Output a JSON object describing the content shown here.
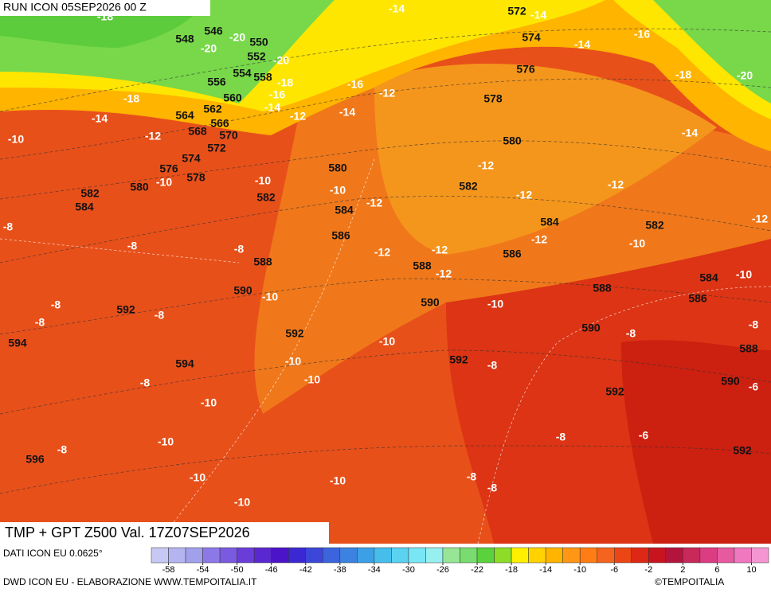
{
  "header": {
    "run": "RUN ICON 05SEP2026 00 Z"
  },
  "map": {
    "height_labels": [
      548,
      546,
      550,
      552,
      554,
      558,
      556,
      560,
      562,
      564,
      566,
      568,
      570,
      572,
      574,
      576,
      578,
      580,
      582,
      584,
      580,
      582,
      584,
      586,
      588,
      590,
      592,
      594,
      592,
      594,
      596,
      572,
      574,
      576,
      578,
      580,
      582,
      584,
      586,
      588,
      590,
      588,
      590,
      592,
      592,
      582,
      584,
      586,
      588,
      590,
      592
    ],
    "temp_labels": [
      -18,
      -20,
      -20,
      -20,
      -18,
      -16,
      -14,
      -18,
      -14,
      -12,
      -10,
      -12,
      -16,
      -12,
      -14,
      -14,
      -14,
      -14,
      -16,
      -18,
      -20,
      -14,
      -10,
      -10,
      -10,
      -12,
      -12,
      -12,
      -12,
      -12,
      -8,
      -8,
      -8,
      -10,
      -12,
      -12,
      -12,
      -12,
      -10,
      -10,
      -10,
      -8,
      -8,
      -8,
      -8,
      -8,
      -10,
      -10,
      -8,
      -10,
      -8,
      -10,
      -6,
      -10,
      -8,
      -8,
      -6,
      -10,
      -10,
      -8,
      -8,
      -10
    ]
  },
  "footer": {
    "title": "TMP + GPT Z500 Val. 17Z07SEP2026",
    "data_source": "DATI ICON EU 0.0625°",
    "credit": "DWD ICON EU - ELABORAZIONE WWW.TEMPOITALIA.IT",
    "copyright": "©TEMPOITALIA"
  },
  "colorbar": {
    "range": [
      -60,
      12
    ],
    "colors": [
      "#c8c8f5",
      "#b4b4f0",
      "#a0a0eb",
      "#8c78e6",
      "#7a5ae0",
      "#6a3cd8",
      "#5a28d0",
      "#4b14c8",
      "#3c28d2",
      "#3c46d8",
      "#3c64dc",
      "#3c82e0",
      "#3ca0e6",
      "#46beec",
      "#5ad2f0",
      "#78e6f5",
      "#96f0f0",
      "#96e696",
      "#78dc6e",
      "#5ad23c",
      "#8cdc28",
      "#fff000",
      "#ffd200",
      "#ffb400",
      "#ff9614",
      "#ff7d14",
      "#f5641e",
      "#eb4614",
      "#dc2814",
      "#c8141e",
      "#b4143c",
      "#c8285a",
      "#dc3c82",
      "#e65aa0",
      "#f078be",
      "#f596d2"
    ],
    "ticks": [
      -58,
      -54,
      -50,
      -46,
      -42,
      -38,
      -34,
      -30,
      -26,
      -22,
      -18,
      -14,
      -10,
      -6,
      -2,
      2,
      6,
      10
    ]
  }
}
